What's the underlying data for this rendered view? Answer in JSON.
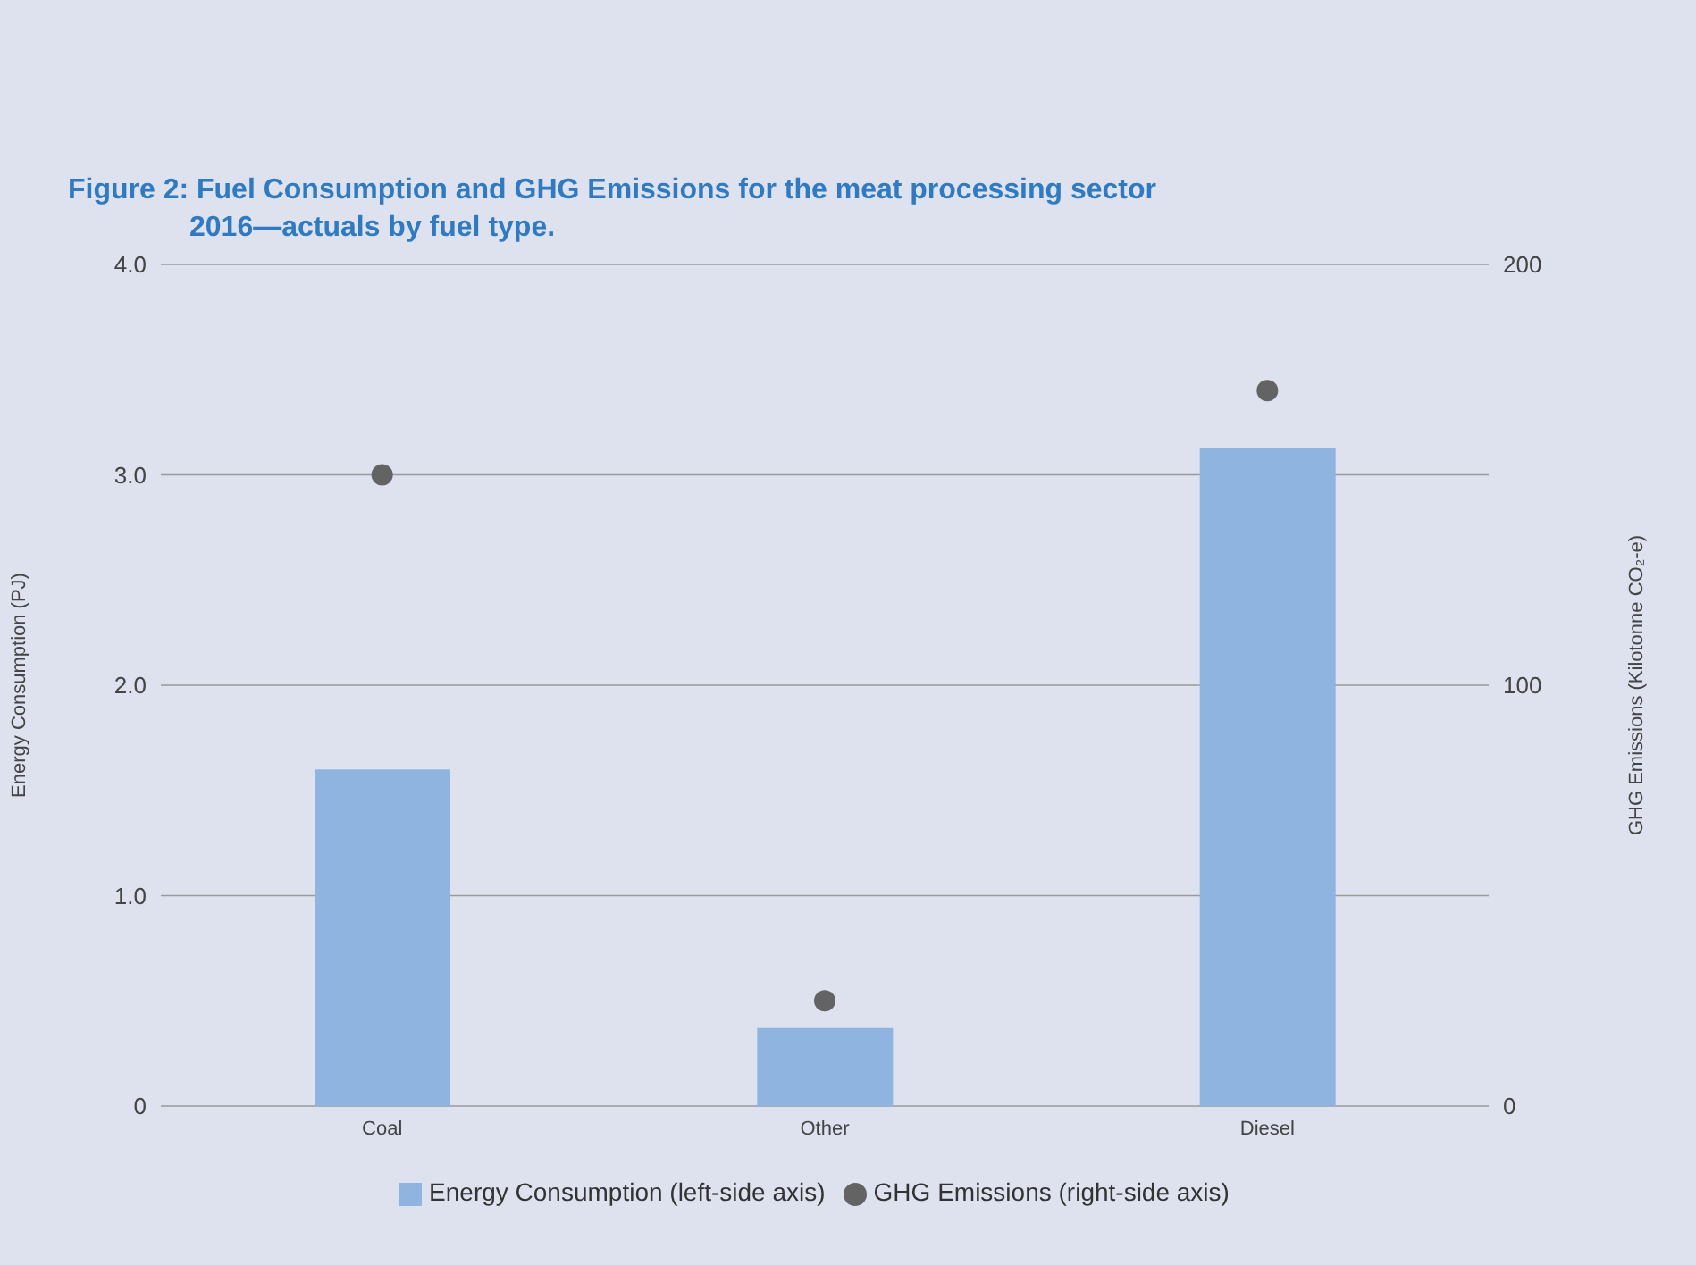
{
  "chart_data": {
    "type": "bar",
    "title": "Figure 2: Fuel Consumption and GHG Emissions for the meat processing sector 2016—actuals by fuel type.",
    "ylabel": "Energy Consumption (PJ)",
    "y2label": "GHG Emissions (Kilotonne CO₂-e)",
    "categories": [
      "Coal",
      "Other",
      "Diesel"
    ],
    "series": [
      {
        "name": "Energy Consumption (left-side axis)",
        "color": "#8fb4e0",
        "values": [
          1.6,
          0.37,
          3.13
        ]
      },
      {
        "name": "GHG Emissions (right-side axis)",
        "type": "scatter",
        "axis": "y2",
        "color": "#636363",
        "values": [
          150,
          25,
          170
        ]
      }
    ],
    "ylim": [
      0,
      4
    ],
    "yticks": [
      {
        "value": 0,
        "label": "0"
      },
      {
        "value": 1,
        "label": "1.0"
      },
      {
        "value": 2,
        "label": "2.0"
      },
      {
        "value": 3,
        "label": "3.0"
      },
      {
        "value": 4,
        "label": "4.0"
      }
    ],
    "y2lim": [
      0,
      200
    ],
    "y2ticks": [
      0,
      100,
      200
    ],
    "grid": "y",
    "legend": "bottom",
    "marker": "circle"
  }
}
